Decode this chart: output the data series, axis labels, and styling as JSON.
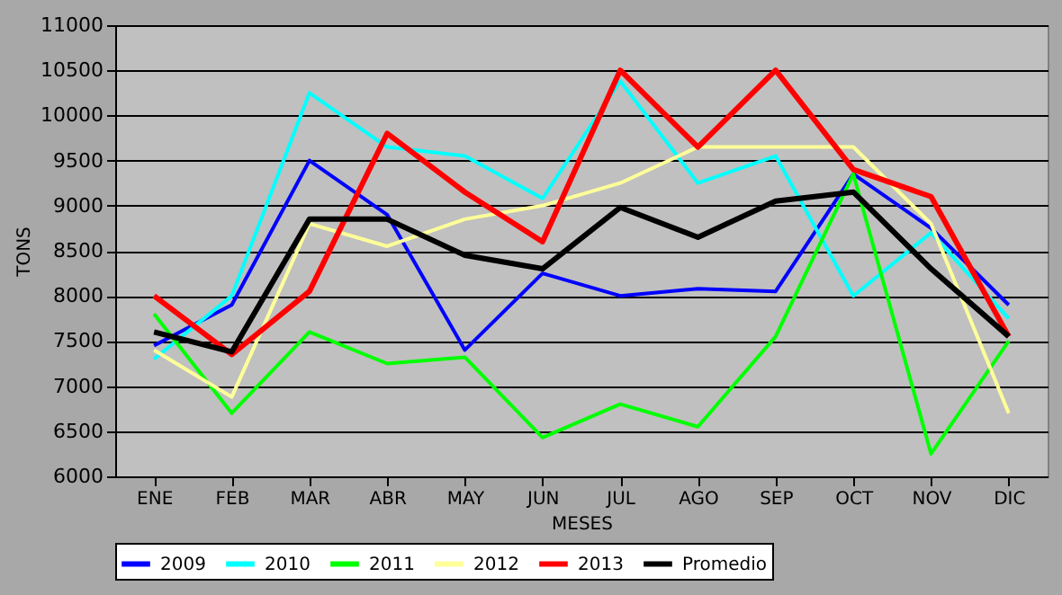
{
  "chart_data": {
    "type": "line",
    "xlabel": "MESES",
    "ylabel": "TONS",
    "categories": [
      "ENE",
      "FEB",
      "MAR",
      "ABR",
      "MAY",
      "JUN",
      "JUL",
      "AGO",
      "SEP",
      "OCT",
      "NOV",
      "DIC"
    ],
    "series": [
      {
        "name": "2009",
        "color": "#0000ff",
        "values": [
          7450,
          7900,
          9500,
          8900,
          7400,
          8250,
          8000,
          8080,
          8050,
          9350,
          8750,
          7900
        ]
      },
      {
        "name": "2010",
        "color": "#00ffff",
        "values": [
          7300,
          8000,
          10250,
          9650,
          9550,
          9080,
          10380,
          9250,
          9550,
          8000,
          8700,
          7750
        ]
      },
      {
        "name": "2011",
        "color": "#00ff00",
        "values": [
          7800,
          6700,
          7600,
          7250,
          7320,
          6430,
          6800,
          6550,
          7550,
          9350,
          6250,
          7500
        ]
      },
      {
        "name": "2012",
        "color": "#ffff99",
        "values": [
          7400,
          6880,
          8800,
          8550,
          8850,
          9000,
          9250,
          9650,
          9650,
          9650,
          8800,
          6700
        ]
      },
      {
        "name": "2013",
        "color": "#ff0000",
        "values": [
          8000,
          7350,
          8050,
          9800,
          9150,
          8600,
          10500,
          9650,
          10500,
          9400,
          9100,
          7550
        ]
      },
      {
        "name": "Promedio",
        "color": "#000000",
        "values": [
          7600,
          7380,
          8850,
          8850,
          8450,
          8300,
          8980,
          8650,
          9050,
          9150,
          8300,
          7550
        ]
      }
    ],
    "ylim": [
      6000,
      11000
    ],
    "yticks": [
      6000,
      6500,
      7000,
      7500,
      8000,
      8500,
      9000,
      9500,
      10000,
      10500,
      11000
    ],
    "grid": "y",
    "legend": "bottom",
    "marker": "none",
    "line_style": "solid"
  }
}
